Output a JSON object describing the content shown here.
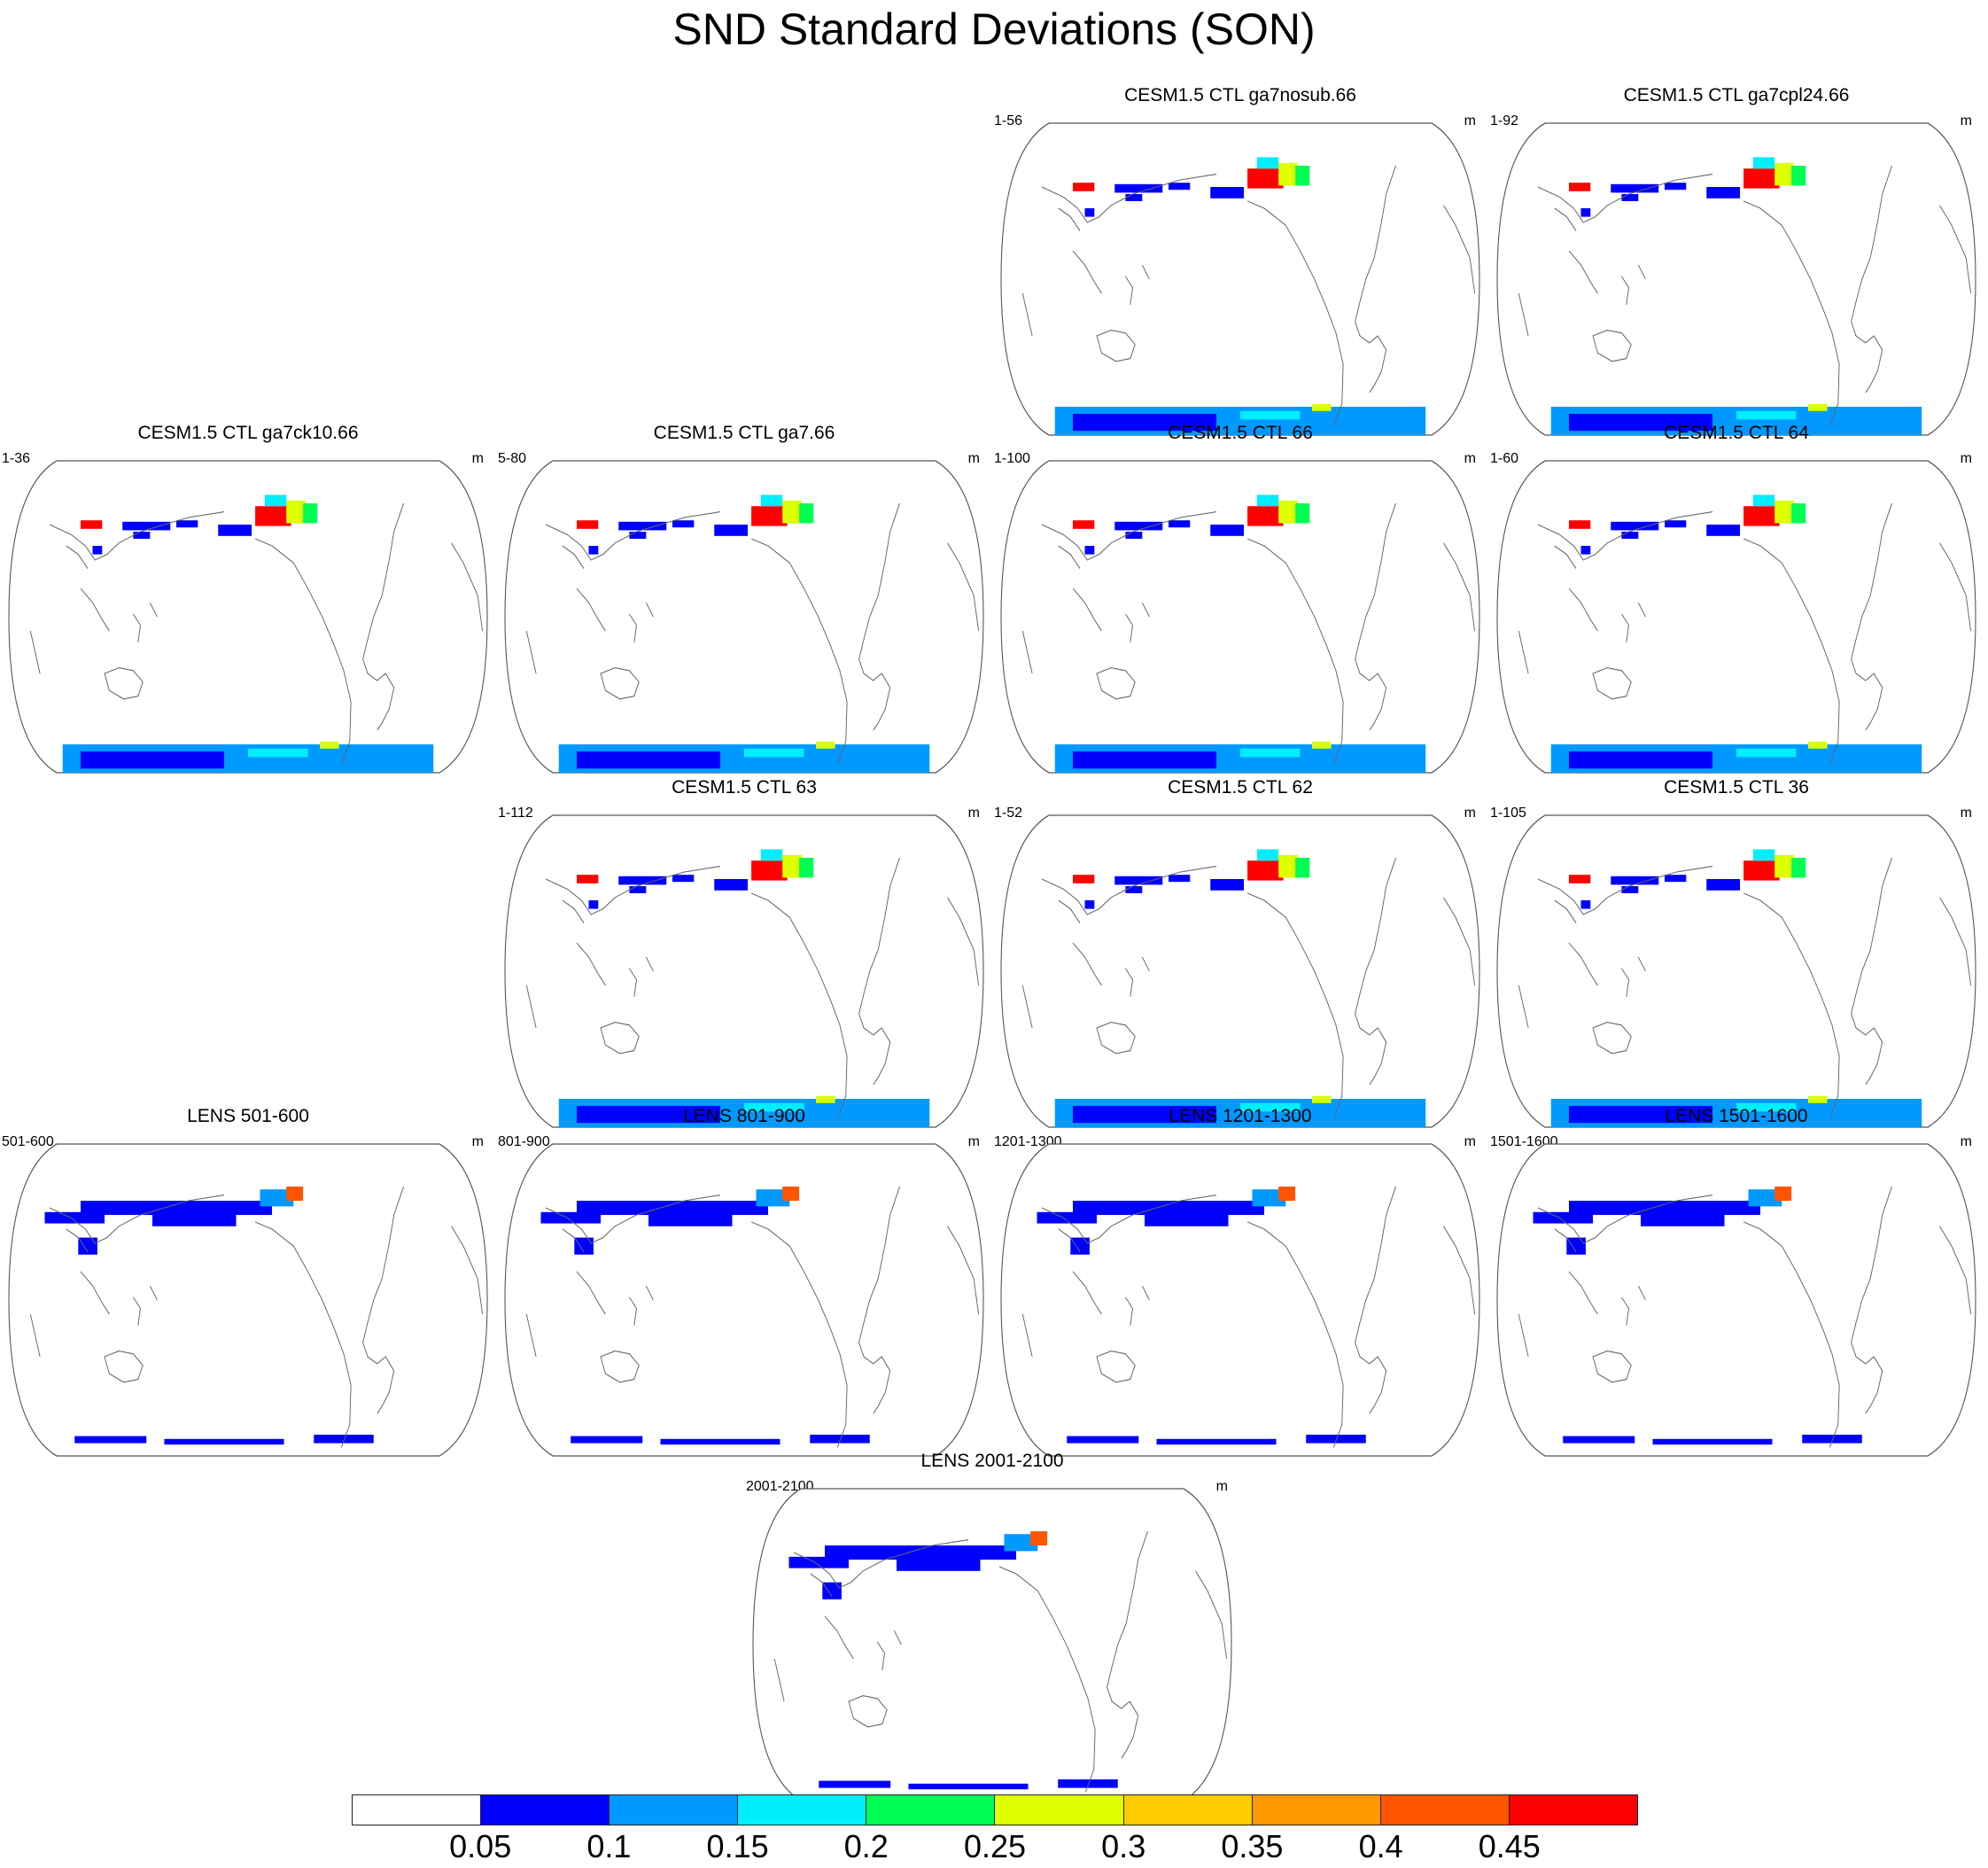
{
  "title": "SND Standard Deviations (SON)",
  "panels": [
    {
      "title": "CESM1.5 CTL ga7nosub.66",
      "left": "1-56",
      "right": "m",
      "level": "high"
    },
    {
      "title": "CESM1.5 CTL ga7cpl24.66",
      "left": "1-92",
      "right": "m",
      "level": "high"
    },
    {
      "title": "CESM1.5 CTL ga7ck10.66",
      "left": "1-36",
      "right": "m",
      "level": "high"
    },
    {
      "title": "CESM1.5 CTL ga7.66",
      "left": "5-80",
      "right": "m",
      "level": "high"
    },
    {
      "title": "CESM1.5 CTL 66",
      "left": "1-100",
      "right": "m",
      "level": "high"
    },
    {
      "title": "CESM1.5 CTL 64",
      "left": "1-60",
      "right": "m",
      "level": "high"
    },
    {
      "title": "CESM1.5 CTL 63",
      "left": "1-112",
      "right": "m",
      "level": "high"
    },
    {
      "title": "CESM1.5 CTL 62",
      "left": "1-52",
      "right": "m",
      "level": "high"
    },
    {
      "title": "CESM1.5 CTL 36",
      "left": "1-105",
      "right": "m",
      "level": "high"
    },
    {
      "title": "LENS 501-600",
      "left": "501-600",
      "right": "m",
      "level": "low"
    },
    {
      "title": "LENS 801-900",
      "left": "801-900",
      "right": "m",
      "level": "low"
    },
    {
      "title": "LENS 1201-1300",
      "left": "1201-1300",
      "right": "m",
      "level": "low"
    },
    {
      "title": "LENS 1501-1600",
      "left": "1501-1600",
      "right": "m",
      "level": "low"
    },
    {
      "title": "LENS 2001-2100",
      "left": "2001-2100",
      "right": "m",
      "level": "low"
    }
  ],
  "colorbar": {
    "colors": [
      "#ffffff",
      "#0000ff",
      "#0099ff",
      "#00eeff",
      "#00ff55",
      "#ddff00",
      "#ffcc00",
      "#ff9900",
      "#ff5500",
      "#ff0000"
    ],
    "labels": [
      "0.05",
      "0.1",
      "0.15",
      "0.2",
      "0.25",
      "0.3",
      "0.35",
      "0.4",
      "0.45"
    ]
  }
}
